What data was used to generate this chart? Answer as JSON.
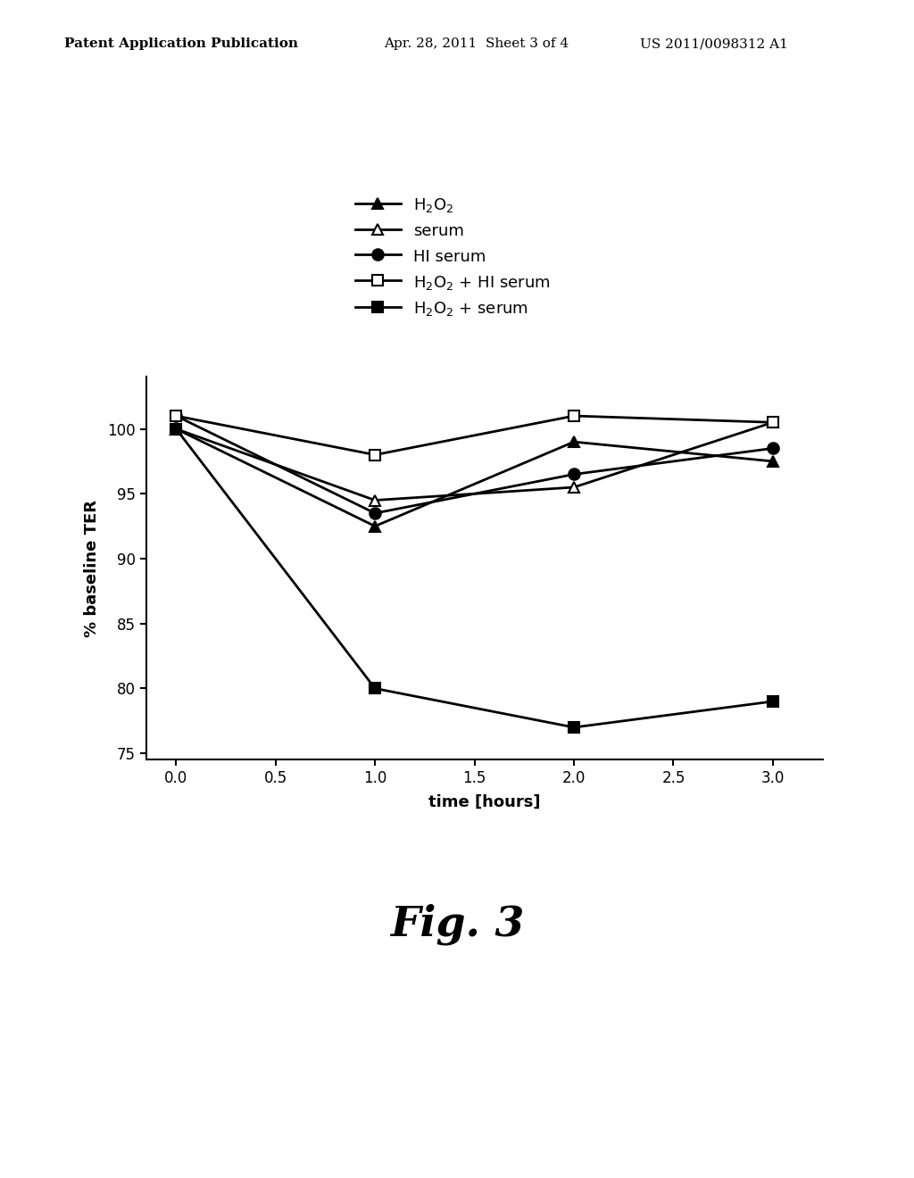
{
  "series": [
    {
      "label": "H$_2$O$_2$",
      "x": [
        0.0,
        1.0,
        2.0,
        3.0
      ],
      "y": [
        100.0,
        92.5,
        99.0,
        97.5
      ],
      "marker": "^",
      "marker_filled": true,
      "color": "#000000",
      "linewidth": 2.0,
      "markersize": 9
    },
    {
      "label": "serum",
      "x": [
        0.0,
        1.0,
        2.0,
        3.0
      ],
      "y": [
        100.0,
        94.5,
        95.5,
        100.5
      ],
      "marker": "^",
      "marker_filled": false,
      "color": "#000000",
      "linewidth": 2.0,
      "markersize": 9
    },
    {
      "label": "HI serum",
      "x": [
        0.0,
        1.0,
        2.0,
        3.0
      ],
      "y": [
        101.0,
        93.5,
        96.5,
        98.5
      ],
      "marker": "o",
      "marker_filled": true,
      "color": "#000000",
      "linewidth": 2.0,
      "markersize": 9
    },
    {
      "label": "H$_2$O$_2$ + HI serum",
      "x": [
        0.0,
        1.0,
        2.0,
        3.0
      ],
      "y": [
        101.0,
        98.0,
        101.0,
        100.5
      ],
      "marker": "s",
      "marker_filled": false,
      "color": "#000000",
      "linewidth": 2.0,
      "markersize": 9
    },
    {
      "label": "H$_2$O$_2$ + serum",
      "x": [
        0.0,
        1.0,
        2.0,
        3.0
      ],
      "y": [
        100.0,
        80.0,
        77.0,
        79.0
      ],
      "marker": "s",
      "marker_filled": true,
      "color": "#000000",
      "linewidth": 2.0,
      "markersize": 9
    }
  ],
  "legend_labels": [
    "H$_2$O$_2$",
    "serum",
    "HI serum",
    "H$_2$O$_2$ + HI serum",
    "H$_2$O$_2$ + serum"
  ],
  "xlabel": "time [hours]",
  "ylabel": "% baseline TER",
  "xlim": [
    -0.15,
    3.25
  ],
  "ylim": [
    74.5,
    104
  ],
  "xticks": [
    0.0,
    0.5,
    1.0,
    1.5,
    2.0,
    2.5,
    3.0
  ],
  "yticks": [
    75,
    80,
    85,
    90,
    95,
    100
  ],
  "figure_title": "Fig. 3",
  "header_left": "Patent Application Publication",
  "header_mid": "Apr. 28, 2011  Sheet 3 of 4",
  "header_right": "US 2011/0098312 A1",
  "background_color": "#ffffff"
}
